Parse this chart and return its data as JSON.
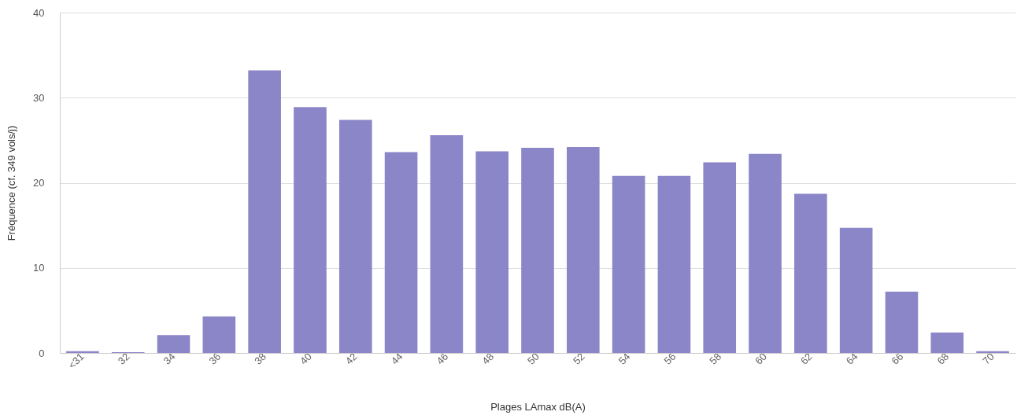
{
  "chart_data": {
    "type": "bar",
    "xlabel": "Plages LAmax dB(A)",
    "ylabel": "Fréquence (cf. 349 vols/j)",
    "categories": [
      "<31",
      "32",
      "34",
      "36",
      "38",
      "40",
      "42",
      "44",
      "46",
      "48",
      "50",
      "52",
      "54",
      "56",
      "58",
      "60",
      "62",
      "64",
      "66",
      "68",
      "70"
    ],
    "values": [
      0.2,
      0.1,
      2.1,
      4.3,
      33.2,
      28.9,
      27.4,
      23.6,
      25.6,
      23.7,
      24.1,
      24.2,
      20.8,
      20.8,
      22.4,
      23.4,
      18.7,
      14.7,
      7.2,
      2.4,
      0.2
    ],
    "color": "#8b86c8",
    "ylim": [
      0,
      40
    ],
    "yticks": [
      0,
      10,
      20,
      30,
      40
    ],
    "grid": "y"
  }
}
